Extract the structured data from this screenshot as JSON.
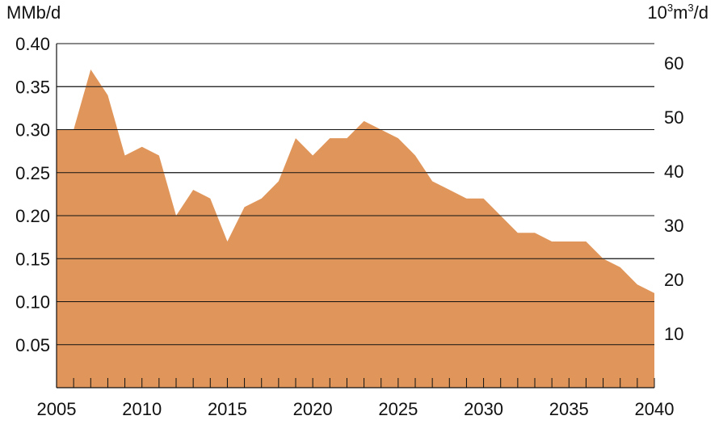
{
  "chart_data": {
    "type": "area",
    "ylabel_left": "MMb/d",
    "ylabel_right_base": "10",
    "ylabel_right_sup1": "3",
    "ylabel_right_mid": "m",
    "ylabel_right_sup2": "3",
    "ylabel_right_tail": "/d",
    "xlim": [
      2005,
      2040
    ],
    "ylim": [
      0,
      0.4
    ],
    "grid": true,
    "fill_color": "#E0965A",
    "x_ticks": [
      "2005",
      "2010",
      "2015",
      "2020",
      "2025",
      "2030",
      "2035",
      "2040"
    ],
    "y_ticks_left": [
      "0.05",
      "0.10",
      "0.15",
      "0.20",
      "0.25",
      "0.30",
      "0.35",
      "0.40"
    ],
    "y_ticks_right": [
      "10",
      "20",
      "30",
      "40",
      "50",
      "60"
    ],
    "series": [
      {
        "x": [
          2005,
          2006,
          2007,
          2008,
          2009,
          2010,
          2011,
          2012,
          2013,
          2014,
          2015,
          2016,
          2017,
          2018,
          2019,
          2020,
          2021,
          2022,
          2023,
          2024,
          2025,
          2026,
          2027,
          2028,
          2029,
          2030,
          2031,
          2032,
          2033,
          2034,
          2035,
          2036,
          2037,
          2038,
          2039,
          2040
        ],
        "values": [
          0.3,
          0.3,
          0.37,
          0.34,
          0.27,
          0.28,
          0.27,
          0.2,
          0.23,
          0.22,
          0.17,
          0.21,
          0.22,
          0.24,
          0.29,
          0.27,
          0.29,
          0.29,
          0.31,
          0.3,
          0.29,
          0.27,
          0.24,
          0.23,
          0.22,
          0.22,
          0.2,
          0.18,
          0.18,
          0.17,
          0.17,
          0.17,
          0.15,
          0.14,
          0.12,
          0.11
        ]
      }
    ]
  }
}
